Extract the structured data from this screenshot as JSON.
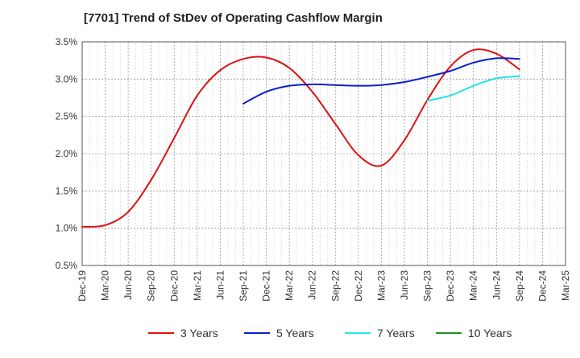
{
  "chart_data": {
    "type": "line",
    "title": "[7701]  Trend of StDev of Operating Cashflow Margin",
    "xlabel": "",
    "ylabel": "",
    "x_ticks": [
      "Dec-19",
      "Mar-20",
      "Jun-20",
      "Sep-20",
      "Dec-20",
      "Mar-21",
      "Jun-21",
      "Sep-21",
      "Dec-21",
      "Mar-22",
      "Jun-22",
      "Sep-22",
      "Dec-22",
      "Mar-23",
      "Jun-23",
      "Sep-23",
      "Dec-23",
      "Mar-24",
      "Jun-24",
      "Sep-24",
      "Dec-24",
      "Mar-25"
    ],
    "y_ticks": [
      "0.5%",
      "1.0%",
      "1.5%",
      "2.0%",
      "2.5%",
      "3.0%",
      "3.5%"
    ],
    "ylim": [
      0.5,
      3.5
    ],
    "y_unit": "%",
    "grid": true,
    "legend_position": "bottom",
    "series": [
      {
        "name": "3 Years",
        "color": "#dd1111",
        "points": [
          [
            "Dec-19",
            1.02
          ],
          [
            "Mar-20",
            1.04
          ],
          [
            "Jun-20",
            1.22
          ],
          [
            "Sep-20",
            1.65
          ],
          [
            "Dec-20",
            2.21
          ],
          [
            "Mar-21",
            2.78
          ],
          [
            "Jun-21",
            3.12
          ],
          [
            "Sep-21",
            3.27
          ],
          [
            "Dec-21",
            3.29
          ],
          [
            "Mar-22",
            3.15
          ],
          [
            "Jun-22",
            2.83
          ],
          [
            "Sep-22",
            2.4
          ],
          [
            "Dec-22",
            1.98
          ],
          [
            "Mar-23",
            1.84
          ],
          [
            "Jun-23",
            2.18
          ],
          [
            "Sep-23",
            2.72
          ],
          [
            "Dec-23",
            3.17
          ],
          [
            "Mar-24",
            3.39
          ],
          [
            "Jun-24",
            3.34
          ],
          [
            "Sep-24",
            3.13
          ]
        ]
      },
      {
        "name": "5 Years",
        "color": "#0a1ec8",
        "points": [
          [
            "Sep-21",
            2.67
          ],
          [
            "Dec-21",
            2.83
          ],
          [
            "Mar-22",
            2.91
          ],
          [
            "Jun-22",
            2.93
          ],
          [
            "Sep-22",
            2.92
          ],
          [
            "Dec-22",
            2.91
          ],
          [
            "Mar-23",
            2.92
          ],
          [
            "Jun-23",
            2.96
          ],
          [
            "Sep-23",
            3.03
          ],
          [
            "Dec-23",
            3.11
          ],
          [
            "Mar-24",
            3.22
          ],
          [
            "Jun-24",
            3.28
          ],
          [
            "Sep-24",
            3.27
          ]
        ]
      },
      {
        "name": "7 Years",
        "color": "#22e6e6",
        "points": [
          [
            "Sep-23",
            2.71
          ],
          [
            "Dec-23",
            2.78
          ],
          [
            "Mar-24",
            2.91
          ],
          [
            "Jun-24",
            3.01
          ],
          [
            "Sep-24",
            3.04
          ]
        ]
      },
      {
        "name": "10 Years",
        "color": "#228b22",
        "points": []
      }
    ]
  }
}
